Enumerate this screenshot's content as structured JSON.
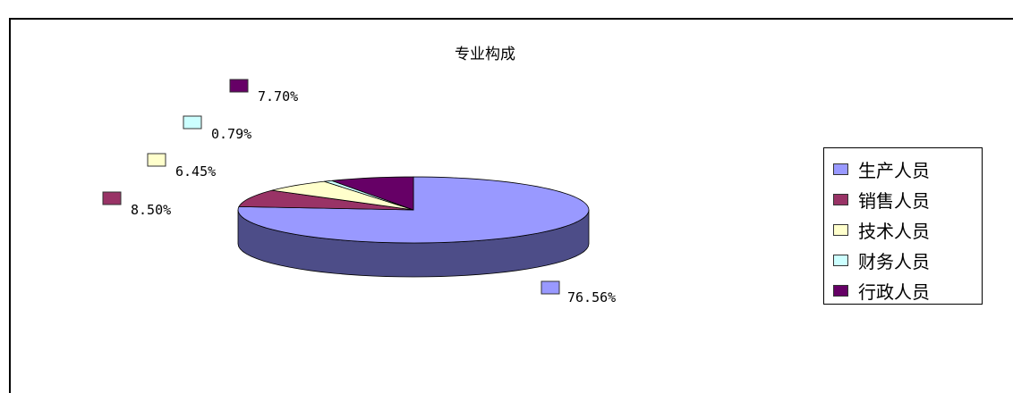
{
  "chart_data": {
    "type": "pie",
    "title": "专业构成",
    "legend_position": "right",
    "slices": [
      {
        "label": "生产人员",
        "value": 76.56,
        "display": "76.56%",
        "color": "#9999ff",
        "side_color": "#4d4d88"
      },
      {
        "label": "销售人员",
        "value": 8.5,
        "display": "8.50%",
        "color": "#993366",
        "side_color": "#4d1a33"
      },
      {
        "label": "技术人员",
        "value": 6.45,
        "display": "6.45%",
        "color": "#ffffcc",
        "side_color": "#8f8f72"
      },
      {
        "label": "财务人员",
        "value": 0.79,
        "display": "0.79%",
        "color": "#ccffff",
        "side_color": "#728f8f"
      },
      {
        "label": "行政人员",
        "value": 7.7,
        "display": "7.70%",
        "color": "#660066",
        "side_color": "#330033"
      }
    ]
  }
}
